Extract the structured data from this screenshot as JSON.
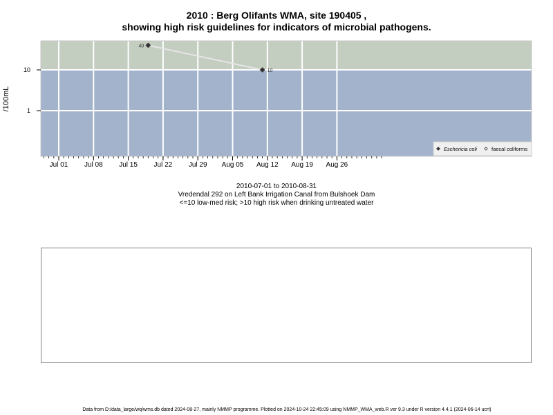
{
  "title_line1": "2010 : Berg Olifants WMA, site 190405 ,",
  "title_line2": "showing high risk guidelines for indicators of microbial pathogens.",
  "captions": {
    "date_range": "2010-07-01 to 2010-08-31",
    "site": "Vredendal 292 on Left Bank Irrigation Canal from Bulshoek Dam",
    "risk": "<=10 low-med risk; >10 high risk when drinking untreated water"
  },
  "footer": "Data from D:/data_large/wq/wms.db dated 2024-08-27, mainly NMMP programme. Plotted on 2024-10-24 22:45:09 using NMMP_WMA_web.R ver 9.3 under R version 4.4.1 (2024-06-14 ucrt)",
  "colors": {
    "high_risk_band": "#c3cdc0",
    "low_risk_band": "#a2b3cb",
    "grid": "#ffffff",
    "series_line": "#e6e6e6",
    "marker": "#333333"
  },
  "chart_data": {
    "type": "line",
    "ylabel": "/100mL",
    "y_scale": "log",
    "y_ticks": [
      1,
      10
    ],
    "y_tick_labels": [
      "1",
      "10"
    ],
    "threshold": 10,
    "x_range": [
      "2010-06-28",
      "2010-09-04"
    ],
    "x_ticks": [
      "2010-07-01",
      "2010-07-08",
      "2010-07-15",
      "2010-07-22",
      "2010-07-29",
      "2010-08-05",
      "2010-08-12",
      "2010-08-19",
      "2010-08-26"
    ],
    "x_tick_labels": [
      "Jul 01",
      "Jul 08",
      "Jul 15",
      "Jul 22",
      "Jul 29",
      "Aug 05",
      "Aug 12",
      "Aug 19",
      "Aug 26"
    ],
    "grid": true,
    "legend_position": "bottom-right",
    "series": [
      {
        "name": "Eschericia coli",
        "marker": "filled-diamond",
        "points": [
          {
            "x": "2010-07-19",
            "y": 40,
            "label": "40"
          },
          {
            "x": "2010-08-11",
            "y": 10,
            "label": "10"
          }
        ]
      },
      {
        "name": "faecal coliforms",
        "marker": "open-diamond",
        "points": []
      }
    ]
  }
}
